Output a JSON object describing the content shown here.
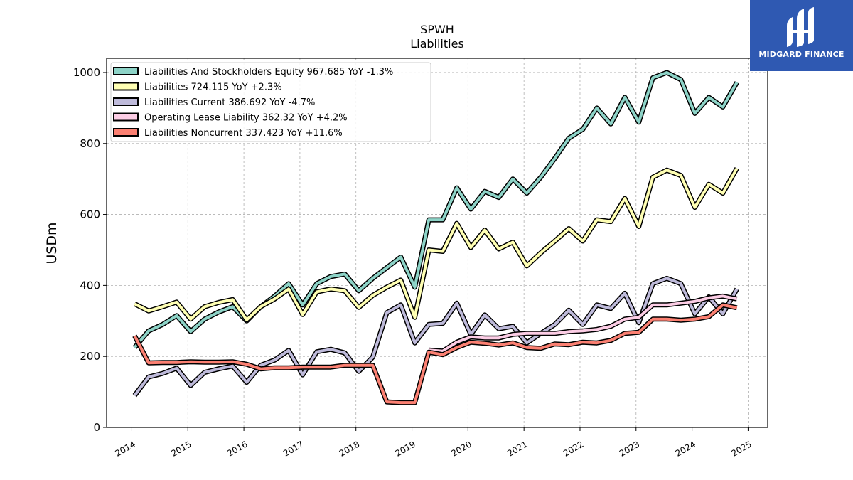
{
  "chart_data": {
    "type": "line",
    "title": "SPWH",
    "subtitle": "Liabilities",
    "ylabel": "USDm",
    "ylim": [
      0,
      1040
    ],
    "xlim": [
      2013.55,
      2025.35
    ],
    "yticks": [
      0,
      200,
      400,
      600,
      800,
      1000
    ],
    "xticks": [
      "2014",
      "2015",
      "2016",
      "2017",
      "2018",
      "2019",
      "2020",
      "2021",
      "2022",
      "2023",
      "2024",
      "2025"
    ],
    "grid": true,
    "legend_position": "top-left",
    "series": [
      {
        "name": "Liabilities And Stockholders Equity",
        "legend": "Liabilities And Stockholders Equity  967.685 YoY -1.3%",
        "color": "#8dd3c7",
        "points": [
          [
            2014.05,
            225
          ],
          [
            2014.3,
            272
          ],
          [
            2014.55,
            290
          ],
          [
            2014.8,
            315
          ],
          [
            2015.05,
            270
          ],
          [
            2015.3,
            305
          ],
          [
            2015.55,
            325
          ],
          [
            2015.8,
            340
          ],
          [
            2016.05,
            300
          ],
          [
            2016.3,
            340
          ],
          [
            2016.55,
            370
          ],
          [
            2016.8,
            405
          ],
          [
            2017.05,
            345
          ],
          [
            2017.3,
            405
          ],
          [
            2017.55,
            425
          ],
          [
            2017.8,
            432
          ],
          [
            2018.05,
            385
          ],
          [
            2018.3,
            420
          ],
          [
            2018.55,
            450
          ],
          [
            2018.8,
            480
          ],
          [
            2019.05,
            395
          ],
          [
            2019.3,
            585
          ],
          [
            2019.55,
            585
          ],
          [
            2019.8,
            675
          ],
          [
            2020.05,
            615
          ],
          [
            2020.3,
            665
          ],
          [
            2020.55,
            648
          ],
          [
            2020.8,
            700
          ],
          [
            2021.05,
            660
          ],
          [
            2021.3,
            705
          ],
          [
            2021.55,
            758
          ],
          [
            2021.8,
            815
          ],
          [
            2022.05,
            840
          ],
          [
            2022.3,
            900
          ],
          [
            2022.55,
            855
          ],
          [
            2022.8,
            930
          ],
          [
            2023.05,
            860
          ],
          [
            2023.3,
            985
          ],
          [
            2023.55,
            1000
          ],
          [
            2023.8,
            980
          ],
          [
            2024.05,
            885
          ],
          [
            2024.3,
            930
          ],
          [
            2024.55,
            903
          ],
          [
            2024.8,
            972
          ]
        ]
      },
      {
        "name": "Liabilities",
        "legend": "Liabilities  724.115 YoY +2.3%",
        "color": "#ffffb3",
        "points": [
          [
            2014.05,
            348
          ],
          [
            2014.3,
            328
          ],
          [
            2014.55,
            340
          ],
          [
            2014.8,
            353
          ],
          [
            2015.05,
            305
          ],
          [
            2015.3,
            340
          ],
          [
            2015.55,
            352
          ],
          [
            2015.8,
            360
          ],
          [
            2016.05,
            303
          ],
          [
            2016.3,
            340
          ],
          [
            2016.55,
            362
          ],
          [
            2016.8,
            390
          ],
          [
            2017.05,
            318
          ],
          [
            2017.3,
            382
          ],
          [
            2017.55,
            390
          ],
          [
            2017.8,
            385
          ],
          [
            2018.05,
            338
          ],
          [
            2018.3,
            372
          ],
          [
            2018.55,
            395
          ],
          [
            2018.8,
            415
          ],
          [
            2019.05,
            310
          ],
          [
            2019.3,
            500
          ],
          [
            2019.55,
            496
          ],
          [
            2019.8,
            575
          ],
          [
            2020.05,
            507
          ],
          [
            2020.3,
            556
          ],
          [
            2020.55,
            503
          ],
          [
            2020.8,
            522
          ],
          [
            2021.05,
            455
          ],
          [
            2021.3,
            492
          ],
          [
            2021.55,
            525
          ],
          [
            2021.8,
            560
          ],
          [
            2022.05,
            525
          ],
          [
            2022.3,
            585
          ],
          [
            2022.55,
            580
          ],
          [
            2022.8,
            645
          ],
          [
            2023.05,
            566
          ],
          [
            2023.3,
            705
          ],
          [
            2023.55,
            725
          ],
          [
            2023.8,
            710
          ],
          [
            2024.05,
            620
          ],
          [
            2024.3,
            685
          ],
          [
            2024.55,
            660
          ],
          [
            2024.8,
            730
          ]
        ]
      },
      {
        "name": "Liabilities Current",
        "legend": "Liabilities Current  386.692 YoY -4.7%",
        "color": "#bebada",
        "points": [
          [
            2014.05,
            90
          ],
          [
            2014.3,
            142
          ],
          [
            2014.55,
            152
          ],
          [
            2014.8,
            167
          ],
          [
            2015.05,
            118
          ],
          [
            2015.3,
            155
          ],
          [
            2015.55,
            165
          ],
          [
            2015.8,
            173
          ],
          [
            2016.05,
            127
          ],
          [
            2016.3,
            175
          ],
          [
            2016.55,
            190
          ],
          [
            2016.8,
            217
          ],
          [
            2017.05,
            148
          ],
          [
            2017.3,
            213
          ],
          [
            2017.55,
            220
          ],
          [
            2017.8,
            210
          ],
          [
            2018.05,
            158
          ],
          [
            2018.3,
            198
          ],
          [
            2018.55,
            323
          ],
          [
            2018.8,
            345
          ],
          [
            2019.05,
            238
          ],
          [
            2019.3,
            290
          ],
          [
            2019.55,
            293
          ],
          [
            2019.8,
            350
          ],
          [
            2020.05,
            262
          ],
          [
            2020.3,
            317
          ],
          [
            2020.55,
            278
          ],
          [
            2020.8,
            285
          ],
          [
            2021.05,
            238
          ],
          [
            2021.3,
            265
          ],
          [
            2021.55,
            290
          ],
          [
            2021.8,
            330
          ],
          [
            2022.05,
            290
          ],
          [
            2022.3,
            345
          ],
          [
            2022.55,
            335
          ],
          [
            2022.8,
            378
          ],
          [
            2023.05,
            295
          ],
          [
            2023.3,
            405
          ],
          [
            2023.55,
            420
          ],
          [
            2023.8,
            405
          ],
          [
            2024.05,
            320
          ],
          [
            2024.3,
            368
          ],
          [
            2024.55,
            320
          ],
          [
            2024.8,
            390
          ]
        ]
      },
      {
        "name": "Operating Lease Liability",
        "legend": "Operating Lease Liability  362.32 YoY +4.2%",
        "color": "#fccde5",
        "points": [
          [
            2019.3,
            218
          ],
          [
            2019.55,
            215
          ],
          [
            2019.8,
            240
          ],
          [
            2020.05,
            255
          ],
          [
            2020.3,
            252
          ],
          [
            2020.55,
            252
          ],
          [
            2020.8,
            262
          ],
          [
            2021.05,
            265
          ],
          [
            2021.3,
            265
          ],
          [
            2021.55,
            265
          ],
          [
            2021.8,
            270
          ],
          [
            2022.05,
            272
          ],
          [
            2022.3,
            276
          ],
          [
            2022.55,
            285
          ],
          [
            2022.8,
            305
          ],
          [
            2023.05,
            310
          ],
          [
            2023.3,
            345
          ],
          [
            2023.55,
            345
          ],
          [
            2023.8,
            350
          ],
          [
            2024.05,
            355
          ],
          [
            2024.3,
            365
          ],
          [
            2024.55,
            370
          ],
          [
            2024.8,
            362
          ]
        ]
      },
      {
        "name": "Liabilities Noncurrent",
        "legend": "Liabilities Noncurrent  337.423 YoY +11.6%",
        "color": "#fb8072",
        "points": [
          [
            2014.05,
            258
          ],
          [
            2014.3,
            182
          ],
          [
            2014.55,
            183
          ],
          [
            2014.8,
            183
          ],
          [
            2015.05,
            185
          ],
          [
            2015.3,
            184
          ],
          [
            2015.55,
            184
          ],
          [
            2015.8,
            185
          ],
          [
            2016.05,
            178
          ],
          [
            2016.3,
            165
          ],
          [
            2016.55,
            168
          ],
          [
            2016.8,
            168
          ],
          [
            2017.05,
            170
          ],
          [
            2017.3,
            170
          ],
          [
            2017.55,
            170
          ],
          [
            2017.8,
            175
          ],
          [
            2018.05,
            175
          ],
          [
            2018.3,
            175
          ],
          [
            2018.55,
            72
          ],
          [
            2018.8,
            70
          ],
          [
            2019.05,
            70
          ],
          [
            2019.3,
            212
          ],
          [
            2019.55,
            205
          ],
          [
            2019.8,
            225
          ],
          [
            2020.05,
            240
          ],
          [
            2020.3,
            237
          ],
          [
            2020.55,
            232
          ],
          [
            2020.8,
            238
          ],
          [
            2021.05,
            225
          ],
          [
            2021.3,
            223
          ],
          [
            2021.55,
            235
          ],
          [
            2021.8,
            233
          ],
          [
            2022.05,
            240
          ],
          [
            2022.3,
            238
          ],
          [
            2022.55,
            245
          ],
          [
            2022.8,
            265
          ],
          [
            2023.05,
            268
          ],
          [
            2023.3,
            305
          ],
          [
            2023.55,
            305
          ],
          [
            2023.8,
            302
          ],
          [
            2024.05,
            305
          ],
          [
            2024.3,
            312
          ],
          [
            2024.55,
            345
          ],
          [
            2024.8,
            337
          ]
        ]
      }
    ]
  },
  "logo": {
    "text": "MIDGARD FINANCE"
  }
}
